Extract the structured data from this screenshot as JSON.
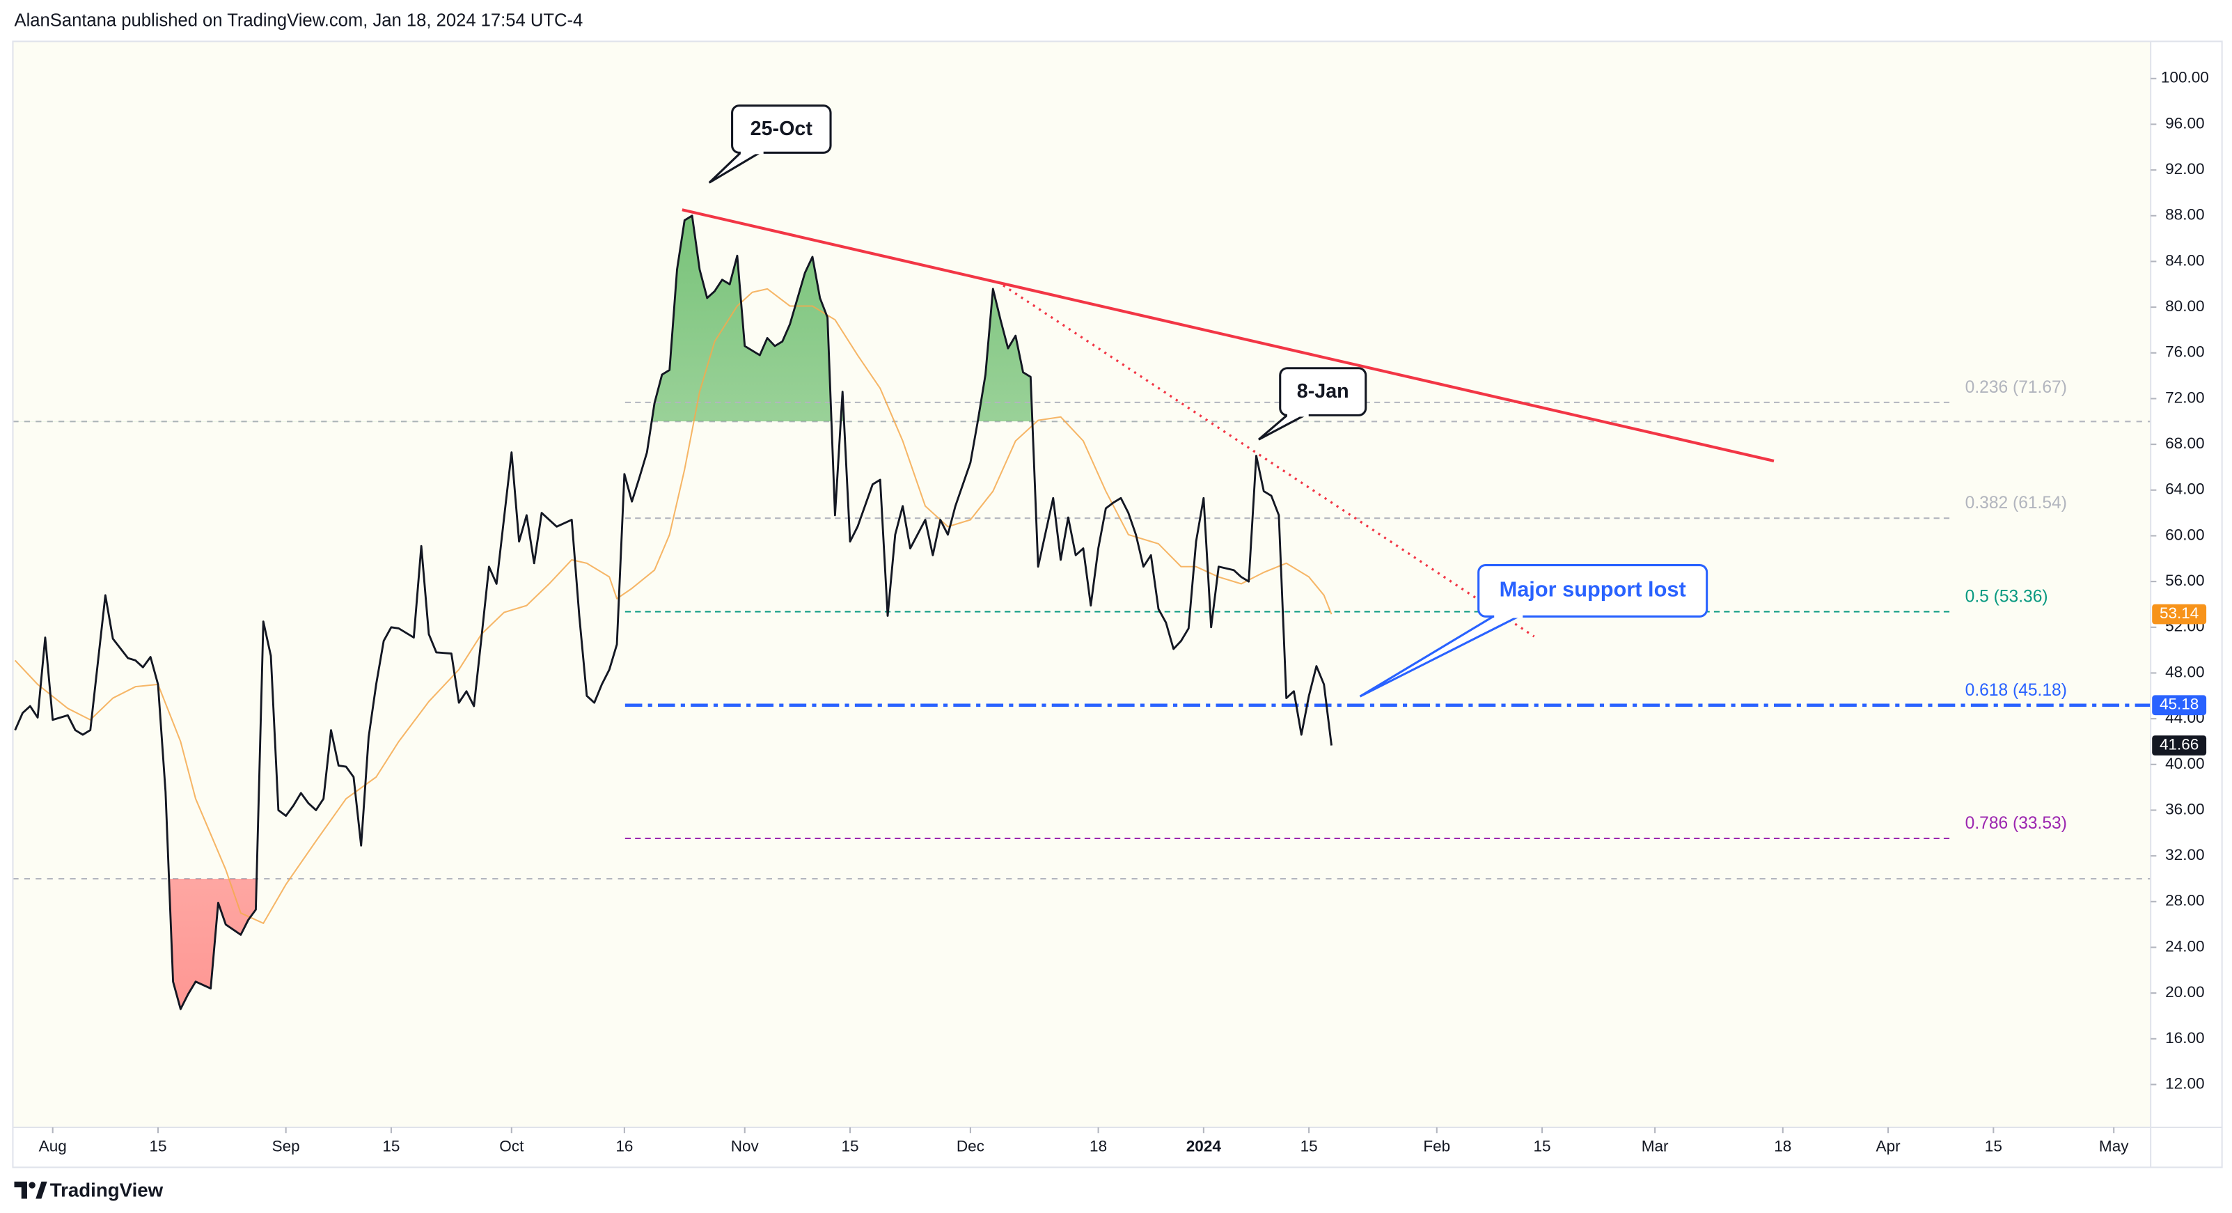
{
  "header": "AlanSantana published on TradingView.com, Jan 18, 2024 17:54 UTC-4",
  "brand": "TradingView",
  "chart_data": {
    "type": "line",
    "xlim": [
      -5.3,
      278.9
    ],
    "ylim": [
      8.25,
      103.25
    ],
    "xticks": [
      {
        "value": 0,
        "label": "Aug"
      },
      {
        "value": 14,
        "label": "15"
      },
      {
        "value": 31,
        "label": "Sep"
      },
      {
        "value": 45,
        "label": "15"
      },
      {
        "value": 61,
        "label": "Oct"
      },
      {
        "value": 76,
        "label": "16"
      },
      {
        "value": 92,
        "label": "Nov"
      },
      {
        "value": 106,
        "label": "15"
      },
      {
        "value": 122,
        "label": "Dec"
      },
      {
        "value": 139,
        "label": "18"
      },
      {
        "value": 153,
        "label": "2024",
        "bold": true
      },
      {
        "value": 167,
        "label": "15"
      },
      {
        "value": 184,
        "label": "Feb"
      },
      {
        "value": 198,
        "label": "15"
      },
      {
        "value": 213,
        "label": "Mar"
      },
      {
        "value": 230,
        "label": "18"
      },
      {
        "value": 244,
        "label": "Apr"
      },
      {
        "value": 258,
        "label": "15"
      },
      {
        "value": 274,
        "label": "May"
      }
    ],
    "yticks": [
      {
        "value": 100,
        "label": "100.00"
      },
      {
        "value": 96,
        "label": "96.00"
      },
      {
        "value": 92,
        "label": "92.00"
      },
      {
        "value": 88,
        "label": "88.00"
      },
      {
        "value": 84,
        "label": "84.00"
      },
      {
        "value": 80,
        "label": "80.00"
      },
      {
        "value": 76,
        "label": "76.00"
      },
      {
        "value": 72,
        "label": "72.00"
      },
      {
        "value": 68,
        "label": "68.00"
      },
      {
        "value": 64,
        "label": "64.00"
      },
      {
        "value": 60,
        "label": "60.00"
      },
      {
        "value": 56,
        "label": "56.00"
      },
      {
        "value": 52,
        "label": "52.00"
      },
      {
        "value": 48,
        "label": "48.00"
      },
      {
        "value": 44,
        "label": "44.00"
      },
      {
        "value": 40,
        "label": "40.00"
      },
      {
        "value": 36,
        "label": "36.00"
      },
      {
        "value": 32,
        "label": "32.00"
      },
      {
        "value": 28,
        "label": "28.00"
      },
      {
        "value": 24,
        "label": "24.00"
      },
      {
        "value": 20,
        "label": "20.00"
      },
      {
        "value": 16,
        "label": "16.00"
      },
      {
        "value": 12,
        "label": "12.00"
      }
    ],
    "bands": [
      70,
      30
    ],
    "series": [
      {
        "color": "#131722",
        "x": [
          -5,
          -4,
          -3,
          -2,
          -1,
          0,
          2,
          3,
          4,
          5,
          7,
          8,
          10,
          11,
          12,
          13,
          14,
          15,
          16,
          17,
          18,
          19,
          21,
          22,
          23,
          25,
          26,
          27,
          28,
          29,
          30,
          31,
          32,
          33,
          34,
          35,
          36,
          37,
          38,
          39,
          40,
          41,
          42,
          43,
          44,
          45,
          46,
          48,
          49,
          50,
          51,
          53,
          54,
          55,
          56,
          57,
          58,
          59,
          61,
          62,
          63,
          64,
          65,
          67,
          69,
          70,
          71,
          72,
          73,
          74,
          75,
          76,
          77,
          78,
          79,
          80,
          81,
          82,
          83,
          84,
          85,
          86,
          87,
          88,
          89,
          90,
          91,
          92,
          94,
          95,
          96,
          97,
          98,
          100,
          101,
          102,
          103,
          104,
          105,
          106,
          107,
          109,
          110,
          111,
          112,
          113,
          114,
          116,
          117,
          118,
          119,
          120,
          122,
          123,
          124,
          125,
          126,
          127,
          128,
          129,
          130,
          131,
          133,
          134,
          135,
          136,
          137,
          138,
          139,
          140,
          141,
          142,
          143,
          144,
          145,
          146,
          147,
          148,
          149,
          150,
          151,
          152,
          153,
          154,
          155,
          157,
          158,
          159,
          160,
          161,
          162,
          163,
          164,
          165,
          166,
          167,
          168,
          169,
          170
        ],
        "values": [
          43.0,
          44.5,
          45.1,
          44.1,
          51.1,
          43.9,
          44.3,
          43.0,
          42.6,
          43.0,
          54.8,
          51.0,
          49.3,
          49.1,
          48.5,
          49.4,
          47.0,
          37.6,
          21.0,
          18.6,
          19.9,
          21.0,
          20.4,
          27.9,
          26.0,
          25.1,
          26.4,
          27.3,
          52.5,
          49.5,
          36.0,
          35.5,
          36.4,
          37.5,
          36.6,
          36.0,
          37.0,
          43.0,
          39.9,
          39.8,
          38.9,
          32.9,
          42.4,
          47.0,
          50.8,
          52.0,
          51.9,
          51.1,
          59.1,
          51.4,
          49.8,
          49.7,
          45.4,
          46.4,
          45.1,
          51.1,
          57.3,
          55.8,
          67.3,
          59.5,
          61.8,
          57.6,
          62.0,
          60.8,
          61.4,
          53.0,
          46.0,
          45.4,
          47.0,
          48.3,
          50.5,
          65.4,
          63.0,
          65.1,
          67.3,
          71.6,
          74.1,
          74.5,
          83.3,
          87.6,
          88.0,
          83.3,
          80.8,
          81.4,
          82.4,
          82.0,
          84.5,
          76.6,
          75.8,
          77.3,
          76.6,
          77.0,
          78.5,
          83.0,
          84.4,
          80.8,
          79.1,
          61.8,
          72.6,
          59.5,
          60.8,
          64.5,
          64.9,
          53.0,
          60.1,
          62.6,
          58.9,
          61.4,
          58.3,
          61.4,
          60.1,
          62.6,
          66.4,
          70.1,
          74.1,
          81.6,
          78.9,
          76.4,
          77.5,
          74.3,
          73.9,
          57.3,
          63.3,
          57.9,
          61.6,
          58.3,
          58.9,
          53.9,
          58.9,
          62.4,
          62.9,
          63.3,
          62.0,
          60.1,
          57.3,
          58.3,
          53.6,
          52.4,
          50.1,
          50.8,
          51.9,
          59.5,
          63.3,
          52.0,
          57.3,
          57.0,
          56.4,
          56.0,
          67.0,
          63.9,
          63.5,
          61.8,
          45.8,
          46.4,
          42.6,
          46.0,
          48.6,
          47.0,
          41.66
        ]
      },
      {
        "color": "#f5a94e",
        "x": [
          -5,
          -2,
          2,
          5,
          8,
          11,
          14,
          17,
          19,
          23,
          25,
          28,
          31,
          35,
          39,
          43,
          46,
          50,
          54,
          57,
          60,
          63,
          66,
          69,
          71,
          74,
          75,
          77,
          80,
          82,
          84,
          86,
          88,
          91,
          93,
          95,
          98,
          101,
          104,
          107,
          110,
          113,
          116,
          119,
          122,
          125,
          128,
          131,
          134,
          137,
          140,
          143,
          147,
          150,
          152,
          155,
          158,
          161,
          164,
          167,
          169,
          170
        ],
        "values": [
          49.1,
          47.0,
          44.9,
          43.9,
          45.8,
          46.8,
          47.0,
          42.0,
          37.0,
          30.8,
          27.0,
          26.1,
          29.5,
          33.3,
          37.0,
          38.9,
          42.0,
          45.5,
          48.3,
          51.4,
          53.3,
          53.9,
          55.8,
          57.9,
          57.6,
          56.4,
          54.5,
          55.4,
          57.0,
          60.1,
          65.8,
          72.6,
          77.0,
          80.1,
          81.3,
          81.6,
          80.1,
          80.1,
          78.9,
          75.8,
          72.9,
          68.3,
          62.6,
          60.8,
          61.4,
          63.9,
          68.3,
          70.1,
          70.4,
          68.3,
          63.9,
          60.1,
          59.3,
          57.3,
          57.3,
          56.4,
          55.8,
          56.8,
          57.6,
          56.4,
          54.8,
          53.14
        ]
      }
    ],
    "fib_levels": [
      {
        "value": 71.67,
        "label": "0.236 (71.67)",
        "color": "#b2b5be"
      },
      {
        "value": 61.54,
        "label": "0.382 (61.54)",
        "color": "#b2b5be"
      },
      {
        "value": 53.36,
        "label": "0.5 (53.36)",
        "color": "#089981"
      },
      {
        "value": 45.18,
        "label": "0.618 (45.18)",
        "color": "#2962ff",
        "tag": true
      },
      {
        "value": 33.53,
        "label": "0.786 (33.53)",
        "color": "#9c27b0"
      }
    ],
    "annotations": [
      "25-Oct",
      "8-Jan",
      "Major support lost"
    ]
  }
}
